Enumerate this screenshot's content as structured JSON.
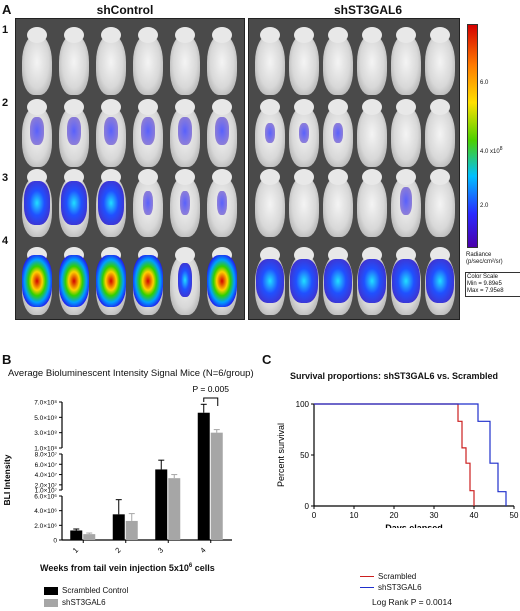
{
  "panel_a": {
    "letter": "A",
    "left_title": "shControl",
    "right_title": "shST3GAL6",
    "rows": [
      "1",
      "2",
      "3",
      "4"
    ],
    "colorbar": {
      "ticks": [
        "6.0",
        "4.0",
        "2.0"
      ],
      "exponent": "x10",
      "exponent_power": "8",
      "radiance_label": "Radiance",
      "radiance_unit": "(p/sec/cm²/sr)",
      "scale_title": "Color Scale",
      "scale_min": "Min = 9.89e5",
      "scale_max": "Max = 7.95e8"
    }
  },
  "panel_b": {
    "letter": "B",
    "title": "Average Bioluminescent Intensity Signal Mice  (N=6/group)",
    "ylabel": "BLI Intensity",
    "xlabel": "Weeks from tail vein injection 5x10",
    "xlabel_sup": "6",
    "xlabel_tail": " cells",
    "pvalue": "P = 0.005",
    "legend": [
      "Scrambled Control",
      "shST3GAL6"
    ],
    "colors": {
      "control": "#000000",
      "sh": "#a6a6a6"
    }
  },
  "panel_c": {
    "letter": "C",
    "title": "Survival proportions: shST3GAL6 vs. Scrambled",
    "ylabel": "Percent survival",
    "xlabel": "Days elapsed",
    "legend": [
      "Scrambled",
      "shST3GAL6"
    ],
    "logrank": "Log Rank P = 0.0014",
    "colors": {
      "scrambled": "#cc1f1f",
      "sh": "#1f2fcc"
    }
  },
  "chart_data": [
    {
      "type": "bar",
      "title": "Average Bioluminescent Intensity Signal Mice  (N=6/group)",
      "xlabel": "Weeks from tail vein injection 5x10^6 cells",
      "ylabel": "BLI Intensity",
      "categories": [
        "1",
        "2",
        "3",
        "4"
      ],
      "scale": "broken",
      "segments": [
        {
          "ylim": [
            0,
            6000000
          ],
          "ticks": [
            "0",
            "2.0×10⁶",
            "4.0×10⁶",
            "6.0×10⁶"
          ],
          "tick_values": [
            0,
            2000000,
            4000000,
            6000000
          ]
        },
        {
          "ylim": [
            10000000,
            80000000
          ],
          "ticks": [
            "1.0×10⁷",
            "2.0×10⁷",
            "4.0×10⁷",
            "6.0×10⁷",
            "8.0×10⁷"
          ],
          "tick_values": [
            10000000,
            20000000,
            40000000,
            60000000,
            80000000
          ]
        },
        {
          "ylim": [
            100000000,
            700000000
          ],
          "ticks": [
            "1.0×10⁸",
            "3.0×10⁸",
            "5.0×10⁸",
            "7.0×10⁸"
          ],
          "tick_values": [
            100000000,
            300000000,
            500000000,
            700000000
          ]
        }
      ],
      "series": [
        {
          "name": "Scrambled Control",
          "values": [
            1300000,
            3500000,
            50000000,
            560000000
          ],
          "errors": [
            200000,
            2000000,
            18000000,
            110000000
          ]
        },
        {
          "name": "shST3GAL6",
          "values": [
            800000,
            2600000,
            33000000,
            300000000
          ],
          "errors": [
            150000,
            1000000,
            7000000,
            40000000
          ]
        }
      ],
      "annotation": "P = 0.005"
    },
    {
      "type": "line",
      "title": "Survival proportions: shST3GAL6 vs. Scrambled",
      "xlabel": "Days elapsed",
      "ylabel": "Percent survival",
      "xlim": [
        0,
        50
      ],
      "ylim": [
        0,
        100
      ],
      "xticks": [
        0,
        10,
        20,
        30,
        40,
        50
      ],
      "yticks": [
        0,
        50,
        100
      ],
      "series": [
        {
          "name": "Scrambled",
          "steps": [
            [
              0,
              100
            ],
            [
              36,
              100
            ],
            [
              36,
              83
            ],
            [
              37,
              83
            ],
            [
              37,
              57
            ],
            [
              38,
              57
            ],
            [
              38,
              42
            ],
            [
              39,
              42
            ],
            [
              39,
              15
            ],
            [
              40,
              15
            ],
            [
              40,
              0
            ]
          ]
        },
        {
          "name": "shST3GAL6",
          "steps": [
            [
              0,
              100
            ],
            [
              41,
              100
            ],
            [
              41,
              83
            ],
            [
              44,
              83
            ],
            [
              44,
              42
            ],
            [
              46,
              42
            ],
            [
              46,
              14
            ],
            [
              48,
              14
            ],
            [
              48,
              0
            ]
          ]
        }
      ],
      "annotation": "Log Rank P = 0.0014"
    }
  ]
}
